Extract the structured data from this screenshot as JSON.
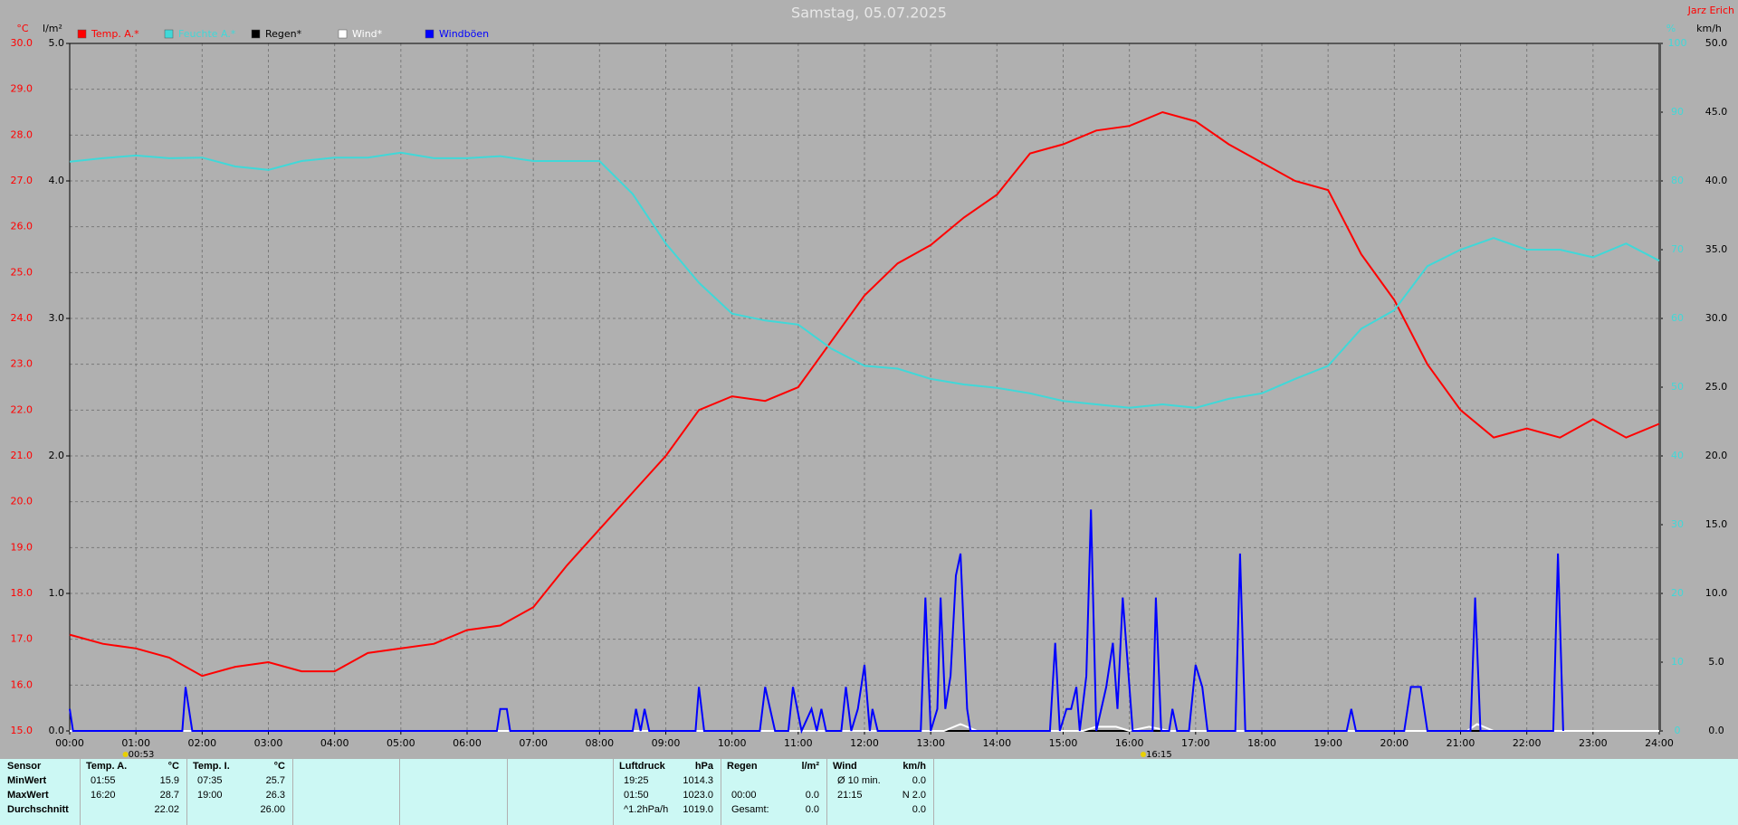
{
  "chart_data": {
    "type": "line",
    "title": "Samstag, 05.07.2025",
    "author": "Jarz Erich",
    "x": [
      0,
      0.5,
      1,
      1.5,
      2,
      2.5,
      3,
      3.5,
      4,
      4.5,
      5,
      5.5,
      6,
      6.5,
      7,
      7.5,
      8,
      8.5,
      9,
      9.5,
      10,
      10.5,
      11,
      11.5,
      12,
      12.5,
      13,
      13.5,
      14,
      14.5,
      15,
      15.5,
      16,
      16.5,
      17,
      17.5,
      18,
      18.5,
      19,
      19.5,
      20,
      20.5,
      21,
      21.5,
      22,
      22.5,
      23,
      23.5,
      24
    ],
    "series": [
      {
        "name": "Temp. A.*",
        "color": "#ff0000",
        "axis": "y",
        "values": [
          17.1,
          16.9,
          16.8,
          16.6,
          16.2,
          16.4,
          16.5,
          16.3,
          16.3,
          16.7,
          16.8,
          16.9,
          17.2,
          17.3,
          17.7,
          18.6,
          19.4,
          20.2,
          21.0,
          22.0,
          22.3,
          22.2,
          22.5,
          23.5,
          24.5,
          25.2,
          25.6,
          26.2,
          26.7,
          27.6,
          27.8,
          28.1,
          28.2,
          28.5,
          28.3,
          27.8,
          27.4,
          27.0,
          26.8,
          25.4,
          24.4,
          23.0,
          22.0,
          21.4,
          21.6,
          21.4,
          21.8,
          21.4,
          21.7
        ]
      },
      {
        "name": "Feuchte A.*",
        "color": "#40d8d8",
        "axis": "y4",
        "values": [
          82.8,
          83.3,
          83.7,
          83.3,
          83.4,
          82.1,
          81.6,
          82.9,
          83.4,
          83.4,
          84.1,
          83.3,
          83.3,
          83.6,
          82.9,
          82.9,
          82.9,
          78.1,
          70.9,
          65.2,
          60.7,
          59.7,
          59.1,
          55.6,
          53.1,
          52.7,
          51.2,
          50.4,
          49.9,
          49.1,
          48.0,
          47.5,
          47.0,
          47.5,
          47.0,
          48.3,
          49.1,
          51.2,
          53.1,
          58.5,
          61.2,
          67.6,
          70.0,
          71.7,
          70.0,
          70.0,
          68.9,
          70.9,
          68.4
        ]
      },
      {
        "name": "Regen*",
        "color": "#000000",
        "axis": "y3",
        "x": [
          0,
          24
        ],
        "values": [
          0,
          0
        ]
      },
      {
        "name": "Wind*",
        "color": "#ffffff",
        "axis": "y2",
        "x": [
          0,
          13.2,
          13.45,
          13.7,
          15.3,
          15.5,
          15.8,
          16,
          16.3,
          16.6,
          21.1,
          21.25,
          21.5,
          24
        ],
        "values": [
          0,
          0,
          0.5,
          0,
          0,
          0.3,
          0.3,
          0,
          0.3,
          0,
          0,
          0.5,
          0,
          0
        ]
      },
      {
        "name": "Windböen",
        "color": "#0000ff",
        "axis": "y2",
        "x": [
          0,
          0.05,
          1.7,
          1.75,
          1.85,
          6.45,
          6.5,
          6.6,
          6.65,
          8.5,
          8.55,
          8.62,
          8.68,
          8.75,
          9.45,
          9.5,
          9.58,
          10.42,
          10.5,
          10.65,
          10.85,
          10.92,
          11.05,
          11.2,
          11.28,
          11.35,
          11.42,
          11.65,
          11.72,
          11.8,
          11.9,
          12,
          12.08,
          12.12,
          12.2,
          12.85,
          12.92,
          13,
          13.1,
          13.15,
          13.22,
          13.3,
          13.38,
          13.45,
          13.55,
          13.6,
          14.8,
          14.88,
          14.95,
          15.05,
          15.12,
          15.2,
          15.25,
          15.35,
          15.42,
          15.5,
          15.65,
          15.75,
          15.82,
          15.9,
          16,
          16.05,
          16.35,
          16.4,
          16.48,
          16.6,
          16.65,
          16.72,
          16.9,
          17,
          17.1,
          17.18,
          17.6,
          17.67,
          17.75,
          19.28,
          19.35,
          19.42,
          20.15,
          20.25,
          20.4,
          20.5,
          21.15,
          21.22,
          21.3,
          22.4,
          22.47,
          22.55
        ],
        "values": [
          1.6,
          0,
          0,
          3.2,
          0,
          0,
          1.6,
          1.6,
          0,
          0,
          1.6,
          0,
          1.6,
          0,
          0,
          3.2,
          0,
          0,
          3.2,
          0,
          0,
          3.2,
          0,
          1.6,
          0,
          1.6,
          0,
          0,
          3.2,
          0,
          1.6,
          4.8,
          0,
          1.6,
          0,
          0,
          9.7,
          0,
          1.6,
          9.7,
          1.6,
          4,
          11.3,
          12.9,
          1.6,
          0,
          0,
          6.4,
          0,
          1.6,
          1.6,
          3.2,
          0,
          4,
          16.1,
          0,
          3.2,
          6.4,
          1.6,
          9.7,
          3.2,
          0,
          0,
          9.7,
          0,
          0,
          1.6,
          0,
          0,
          4.8,
          3.2,
          0,
          0,
          12.9,
          0,
          0,
          1.6,
          0,
          0,
          3.2,
          3.2,
          0,
          0,
          9.7,
          0,
          0,
          12.9,
          0
        ]
      }
    ],
    "xlim": [
      0,
      24
    ],
    "xticks": [
      {
        "value": 0,
        "label": "00:00"
      },
      {
        "value": 1,
        "label": "01:00"
      },
      {
        "value": 2,
        "label": "02:00"
      },
      {
        "value": 3,
        "label": "03:00"
      },
      {
        "value": 4,
        "label": "04:00"
      },
      {
        "value": 5,
        "label": "05:00"
      },
      {
        "value": 6,
        "label": "06:00"
      },
      {
        "value": 7,
        "label": "07:00"
      },
      {
        "value": 8,
        "label": "08:00"
      },
      {
        "value": 9,
        "label": "09:00"
      },
      {
        "value": 10,
        "label": "10:00"
      },
      {
        "value": 11,
        "label": "11:00"
      },
      {
        "value": 12,
        "label": "12:00"
      },
      {
        "value": 13,
        "label": "13:00"
      },
      {
        "value": 14,
        "label": "14:00"
      },
      {
        "value": 15,
        "label": "15:00"
      },
      {
        "value": 16,
        "label": "16:00"
      },
      {
        "value": 17,
        "label": "17:00"
      },
      {
        "value": 18,
        "label": "18:00"
      },
      {
        "value": 19,
        "label": "19:00"
      },
      {
        "value": 20,
        "label": "20:00"
      },
      {
        "value": 21,
        "label": "21:00"
      },
      {
        "value": 22,
        "label": "22:00"
      },
      {
        "value": 23,
        "label": "23:00"
      },
      {
        "value": 24,
        "label": "24:00"
      }
    ],
    "ylabel": "°C",
    "ylim": [
      15,
      30
    ],
    "yticks": [
      {
        "value": 15,
        "label": "15.0"
      },
      {
        "value": 16,
        "label": "16.0"
      },
      {
        "value": 17,
        "label": "17.0"
      },
      {
        "value": 18,
        "label": "18.0"
      },
      {
        "value": 19,
        "label": "19.0"
      },
      {
        "value": 20,
        "label": "20.0"
      },
      {
        "value": 21,
        "label": "21.0"
      },
      {
        "value": 22,
        "label": "22.0"
      },
      {
        "value": 23,
        "label": "23.0"
      },
      {
        "value": 24,
        "label": "24.0"
      },
      {
        "value": 25,
        "label": "25.0"
      },
      {
        "value": 26,
        "label": "26.0"
      },
      {
        "value": 27,
        "label": "27.0"
      },
      {
        "value": 28,
        "label": "28.0"
      },
      {
        "value": 29,
        "label": "29.0"
      },
      {
        "value": 30,
        "label": "30.0"
      }
    ],
    "y3label": "l/m²",
    "y3lim": [
      0,
      5
    ],
    "y3ticks": [
      {
        "value": 0,
        "label": "0.0"
      },
      {
        "value": 1,
        "label": "1.0"
      },
      {
        "value": 2,
        "label": "2.0"
      },
      {
        "value": 3,
        "label": "3.0"
      },
      {
        "value": 4,
        "label": "4.0"
      },
      {
        "value": 5,
        "label": "5.0"
      }
    ],
    "y4label": "%",
    "y4lim": [
      0,
      100
    ],
    "y4ticks": [
      0,
      10,
      20,
      30,
      40,
      50,
      60,
      70,
      80,
      90,
      100
    ],
    "y2label": "km/h",
    "y2lim": [
      0,
      50
    ],
    "y2ticks": [
      {
        "value": 0,
        "label": "0.0"
      },
      {
        "value": 5,
        "label": "5.0"
      },
      {
        "value": 10,
        "label": "10.0"
      },
      {
        "value": 15,
        "label": "15.0"
      },
      {
        "value": 20,
        "label": "20.0"
      },
      {
        "value": 25,
        "label": "25.0"
      },
      {
        "value": 30,
        "label": "30.0"
      },
      {
        "value": 35,
        "label": "35.0"
      },
      {
        "value": 40,
        "label": "40.0"
      },
      {
        "value": 45,
        "label": "45.0"
      },
      {
        "value": 50,
        "label": "50.0"
      }
    ],
    "grid": true,
    "annotations": [
      {
        "text": "00:53",
        "x": 0.883
      },
      {
        "text": "16:15",
        "x": 16.25
      }
    ]
  },
  "table": {
    "row_heads": [
      "Sensor",
      "MinWert",
      "MaxWert",
      "Durchschnitt"
    ],
    "groups": [
      {
        "name": "Temp. A.",
        "unit": "°C",
        "rows": [
          [
            "01:55",
            "15.9"
          ],
          [
            "16:20",
            "28.7"
          ],
          [
            null,
            "22.02"
          ]
        ]
      },
      {
        "name": "Temp. I.",
        "unit": "°C",
        "rows": [
          [
            "07:35",
            "25.7"
          ],
          [
            "19:00",
            "26.3"
          ],
          [
            null,
            "26.00"
          ]
        ]
      },
      {
        "name": "Luftdruck",
        "unit": "hPa",
        "rows": [
          [
            "19:25",
            "1014.3"
          ],
          [
            "01:50",
            "1023.0"
          ],
          [
            "^1.2hPa/h",
            "1019.0"
          ]
        ]
      },
      {
        "name": "Regen",
        "unit": "l/m²",
        "rows": [
          null,
          [
            "00:00",
            "0.0"
          ],
          [
            "Gesamt:",
            "0.0"
          ]
        ]
      },
      {
        "name": "Wind",
        "unit": "km/h",
        "rows": [
          [
            "Ø 10 min.",
            "0.0"
          ],
          [
            "21:15",
            "N 2.0"
          ],
          [
            null,
            "0.0"
          ]
        ]
      }
    ]
  }
}
